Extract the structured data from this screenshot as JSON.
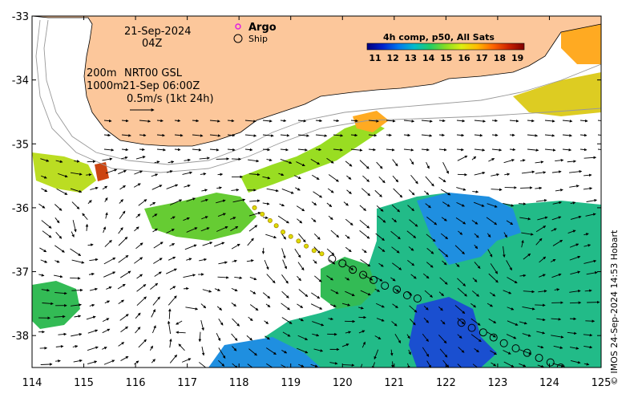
{
  "date_label": "21-Sep-2024",
  "time_label": "04Z",
  "current": {
    "depth_label": "200m",
    "depth_label_2": "1000m",
    "product": "NRT00 GSL",
    "product_time": "21-Sep 06:00Z",
    "scale_label": "0.5m/s (1kt 24h)"
  },
  "legend": {
    "argo": "Argo",
    "ship": "Ship",
    "argo_color": "#e020e0"
  },
  "colorbar": {
    "title": "4h comp, p50, All Sats",
    "ticks": [
      "11",
      "12",
      "13",
      "14",
      "15",
      "16",
      "17",
      "18",
      "19"
    ],
    "colors": [
      "#00007f",
      "#0022cc",
      "#0077ee",
      "#00bbcc",
      "#22cc66",
      "#88dd22",
      "#ddee11",
      "#ffbb00",
      "#ff6600",
      "#cc2200",
      "#7f0000"
    ]
  },
  "axes": {
    "x_ticks": [
      "114",
      "115",
      "116",
      "117",
      "118",
      "119",
      "120",
      "121",
      "122",
      "123",
      "124",
      "125"
    ],
    "y_ticks": [
      "-33",
      "-34",
      "-35",
      "-36",
      "-37",
      "-38"
    ],
    "lon_range": [
      114,
      125
    ],
    "lat_range": [
      -38.5,
      -33
    ]
  },
  "colors": {
    "land": "#fcc79b",
    "ocean_nodata": "#ffffff",
    "arrow": "#000000"
  },
  "ship_track": [
    [
      119.8,
      -36.8
    ],
    [
      120.0,
      -36.87
    ],
    [
      120.2,
      -36.97
    ],
    [
      120.4,
      -37.05
    ],
    [
      120.6,
      -37.13
    ],
    [
      120.82,
      -37.22
    ],
    [
      121.05,
      -37.28
    ],
    [
      121.25,
      -37.37
    ],
    [
      121.45,
      -37.42
    ],
    [
      122.3,
      -37.8
    ],
    [
      122.5,
      -37.88
    ],
    [
      122.72,
      -37.95
    ],
    [
      122.92,
      -38.03
    ],
    [
      123.12,
      -38.12
    ],
    [
      123.35,
      -38.2
    ],
    [
      123.57,
      -38.27
    ],
    [
      123.8,
      -38.35
    ],
    [
      124.02,
      -38.42
    ],
    [
      124.22,
      -38.5
    ]
  ],
  "argo_track": [
    [
      118.3,
      -36.0
    ],
    [
      118.45,
      -36.1
    ],
    [
      118.6,
      -36.2
    ],
    [
      118.72,
      -36.28
    ],
    [
      118.85,
      -36.38
    ],
    [
      119.0,
      -36.45
    ],
    [
      119.15,
      -36.52
    ],
    [
      119.3,
      -36.6
    ],
    [
      119.45,
      -36.67
    ],
    [
      119.6,
      -36.72
    ]
  ],
  "credit": "© IMOS 24-Sep-2024 14:53 Hobart"
}
